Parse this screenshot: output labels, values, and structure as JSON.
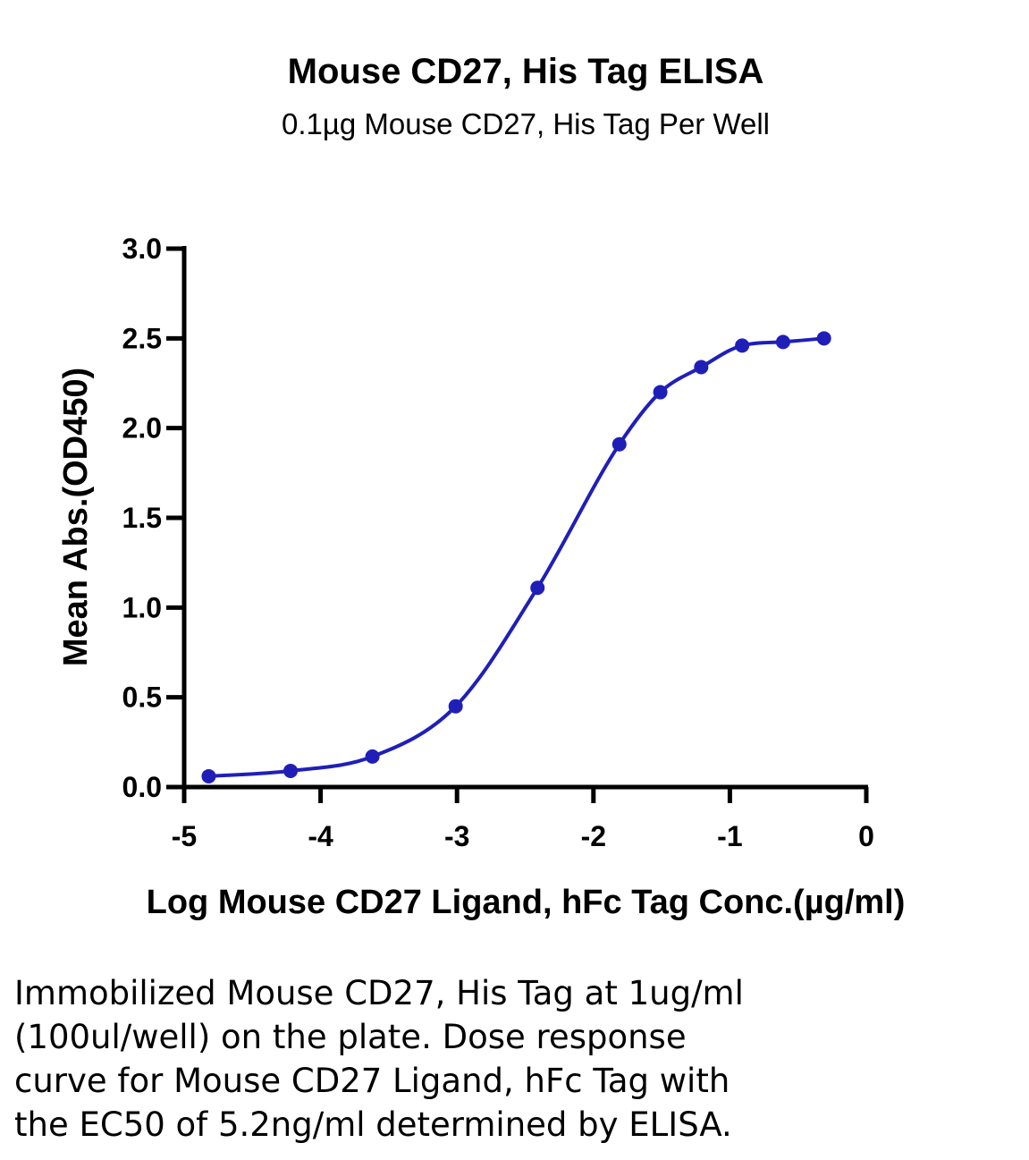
{
  "chart_data": {
    "type": "line",
    "title": "Mouse CD27, His Tag ELISA",
    "subtitle": "0.1µg Mouse CD27, His Tag Per Well",
    "xlabel": "Log Mouse CD27 Ligand, hFc Tag Conc.(µg/ml)",
    "ylabel": "Mean Abs.(OD450)",
    "xlim": [
      -5,
      0
    ],
    "ylim": [
      0,
      3.0
    ],
    "x_ticks": [
      "-5",
      "-4",
      "-3",
      "-2",
      "-1",
      "0"
    ],
    "y_ticks": [
      "0.0",
      "0.5",
      "1.0",
      "1.5",
      "2.0",
      "2.5",
      "3.0"
    ],
    "grid": false,
    "legend": "none",
    "series": [
      {
        "color": "#1f1fb8",
        "marker": "circle",
        "fit": "4PL",
        "x": [
          -4.82,
          -4.22,
          -3.62,
          -3.01,
          -2.41,
          -1.81,
          -1.51,
          -1.21,
          -0.91,
          -0.61,
          -0.31
        ],
        "y": [
          0.06,
          0.09,
          0.17,
          0.45,
          1.11,
          1.91,
          2.2,
          2.34,
          2.46,
          2.48,
          2.5
        ]
      }
    ]
  },
  "caption": [
    "Immobilized Mouse CD27, His Tag at 1ug/ml",
    "(100ul/well) on the plate. Dose response",
    "curve for Mouse CD27 Ligand, hFc Tag with",
    "the EC50 of 5.2ng/ml determined by ELISA."
  ]
}
